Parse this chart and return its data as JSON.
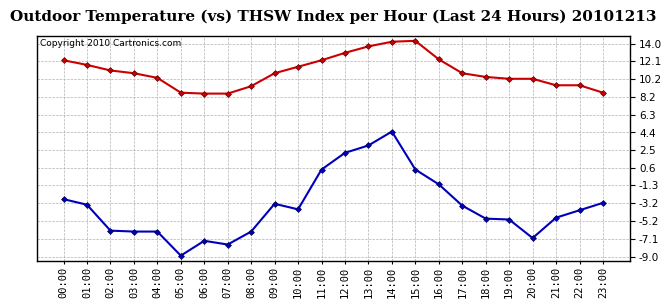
{
  "title": "Outdoor Temperature (vs) THSW Index per Hour (Last 24 Hours) 20101213",
  "copyright": "Copyright 2010 Cartronics.com",
  "hours": [
    "00:00",
    "01:00",
    "02:00",
    "03:00",
    "04:00",
    "05:00",
    "06:00",
    "07:00",
    "08:00",
    "09:00",
    "10:00",
    "11:00",
    "12:00",
    "13:00",
    "14:00",
    "15:00",
    "16:00",
    "17:00",
    "18:00",
    "19:00",
    "20:00",
    "21:00",
    "22:00",
    "23:00"
  ],
  "temp_red": [
    12.2,
    11.7,
    11.1,
    10.8,
    10.3,
    8.7,
    8.6,
    8.6,
    9.4,
    10.8,
    11.5,
    12.2,
    13.0,
    13.7,
    14.2,
    14.3,
    12.3,
    10.8,
    10.4,
    10.2,
    10.2,
    9.5,
    9.5,
    8.7
  ],
  "thsw_blue": [
    -2.8,
    -3.4,
    -6.2,
    -6.3,
    -6.3,
    -8.9,
    -7.3,
    -7.7,
    -6.3,
    -3.3,
    -3.9,
    0.4,
    2.2,
    3.0,
    4.5,
    0.4,
    -1.2,
    -3.5,
    -4.9,
    -5.0,
    -7.0,
    -4.8,
    -4.0,
    -3.2
  ],
  "yticks": [
    14.0,
    12.1,
    10.2,
    8.2,
    6.3,
    4.4,
    2.5,
    0.6,
    -1.3,
    -3.2,
    -5.2,
    -7.1,
    -9.0
  ],
  "ylim": [
    -9.5,
    14.8
  ],
  "bg_color": "#ffffff",
  "plot_bg_color": "#ffffff",
  "grid_color": "#aaaaaa",
  "red_color": "#cc0000",
  "blue_color": "#0000bb",
  "title_fontsize": 11,
  "copyright_fontsize": 6.5,
  "tick_fontsize": 7.5
}
